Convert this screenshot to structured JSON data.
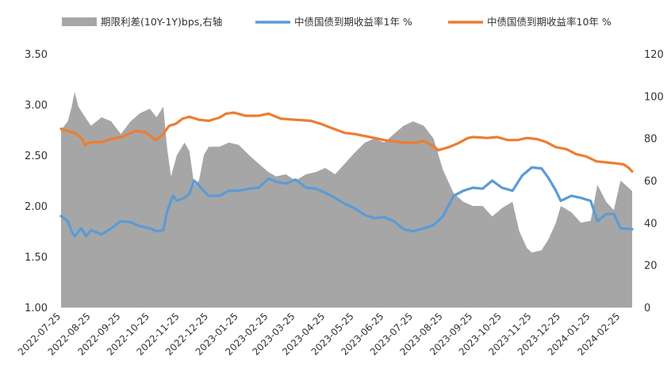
{
  "chart_data": {
    "type": "area+line",
    "title": "",
    "legend": {
      "position": "top",
      "entries": [
        {
          "key": "spread",
          "label": "期限利差(10Y-1Y)bps,右轴",
          "kind": "area",
          "color": "#a6a6a6"
        },
        {
          "key": "y1",
          "label": "中债国债到期收益率1年 %",
          "kind": "line",
          "color": "#5b9bd5"
        },
        {
          "key": "y10",
          "label": "中债国债到期收益率10年 %",
          "kind": "line",
          "color": "#ed7d31"
        }
      ]
    },
    "left_axis": {
      "min": 1.0,
      "max": 3.5,
      "ticks": [
        "1.00",
        "1.50",
        "2.00",
        "2.50",
        "3.00",
        "3.50"
      ]
    },
    "right_axis": {
      "min": 0,
      "max": 120,
      "ticks": [
        "0",
        "20",
        "40",
        "60",
        "80",
        "100",
        "120"
      ]
    },
    "x_axis": {
      "start": "2022-07-25",
      "end": "2024-03-08",
      "tick_labels": [
        "2022-07-25",
        "2022-08-25",
        "2022-09-25",
        "2022-10-25",
        "2022-11-25",
        "2022-12-25",
        "2023-01-25",
        "2023-02-25",
        "2023-03-25",
        "2023-04-25",
        "2023-05-25",
        "2023-06-25",
        "2023-07-25",
        "2023-08-25",
        "2023-09-25",
        "2023-10-25",
        "2023-11-25",
        "2023-12-25",
        "2024-01-25",
        "2024-02-25"
      ]
    },
    "series": [
      {
        "name": "中债国债到期收益率10年 %",
        "key": "y10",
        "axis": "left",
        "points": [
          [
            "2022-07-25",
            2.76
          ],
          [
            "2022-08-01",
            2.74
          ],
          [
            "2022-08-08",
            2.72
          ],
          [
            "2022-08-15",
            2.67
          ],
          [
            "2022-08-19",
            2.6
          ],
          [
            "2022-08-25",
            2.63
          ],
          [
            "2022-09-05",
            2.63
          ],
          [
            "2022-09-15",
            2.66
          ],
          [
            "2022-09-26",
            2.68
          ],
          [
            "2022-10-10",
            2.74
          ],
          [
            "2022-10-20",
            2.73
          ],
          [
            "2022-10-31",
            2.65
          ],
          [
            "2022-11-07",
            2.7
          ],
          [
            "2022-11-14",
            2.79
          ],
          [
            "2022-11-21",
            2.81
          ],
          [
            "2022-11-28",
            2.86
          ],
          [
            "2022-12-05",
            2.88
          ],
          [
            "2022-12-15",
            2.85
          ],
          [
            "2022-12-25",
            2.84
          ],
          [
            "2023-01-05",
            2.87
          ],
          [
            "2023-01-12",
            2.91
          ],
          [
            "2023-01-20",
            2.92
          ],
          [
            "2023-02-01",
            2.89
          ],
          [
            "2023-02-15",
            2.89
          ],
          [
            "2023-02-25",
            2.91
          ],
          [
            "2023-03-10",
            2.86
          ],
          [
            "2023-03-25",
            2.85
          ],
          [
            "2023-04-10",
            2.84
          ],
          [
            "2023-04-20",
            2.81
          ],
          [
            "2023-05-01",
            2.77
          ],
          [
            "2023-05-15",
            2.72
          ],
          [
            "2023-05-25",
            2.71
          ],
          [
            "2023-06-10",
            2.68
          ],
          [
            "2023-06-25",
            2.65
          ],
          [
            "2023-07-10",
            2.63
          ],
          [
            "2023-07-25",
            2.62
          ],
          [
            "2023-08-05",
            2.64
          ],
          [
            "2023-08-15",
            2.59
          ],
          [
            "2023-08-20",
            2.55
          ],
          [
            "2023-08-31",
            2.58
          ],
          [
            "2023-09-10",
            2.62
          ],
          [
            "2023-09-20",
            2.67
          ],
          [
            "2023-09-25",
            2.68
          ],
          [
            "2023-10-10",
            2.67
          ],
          [
            "2023-10-20",
            2.68
          ],
          [
            "2023-10-31",
            2.65
          ],
          [
            "2023-11-10",
            2.65
          ],
          [
            "2023-11-20",
            2.67
          ],
          [
            "2023-11-30",
            2.66
          ],
          [
            "2023-12-10",
            2.63
          ],
          [
            "2023-12-20",
            2.58
          ],
          [
            "2023-12-31",
            2.56
          ],
          [
            "2024-01-10",
            2.51
          ],
          [
            "2024-01-20",
            2.49
          ],
          [
            "2024-01-31",
            2.44
          ],
          [
            "2024-02-10",
            2.43
          ],
          [
            "2024-02-20",
            2.42
          ],
          [
            "2024-02-28",
            2.41
          ],
          [
            "2024-03-04",
            2.38
          ],
          [
            "2024-03-08",
            2.34
          ]
        ]
      },
      {
        "name": "中债国债到期收益率1年 %",
        "key": "y1",
        "axis": "left",
        "points": [
          [
            "2022-07-25",
            1.9
          ],
          [
            "2022-08-01",
            1.85
          ],
          [
            "2022-08-05",
            1.75
          ],
          [
            "2022-08-08",
            1.7
          ],
          [
            "2022-08-15",
            1.78
          ],
          [
            "2022-08-20",
            1.7
          ],
          [
            "2022-08-25",
            1.76
          ],
          [
            "2022-09-05",
            1.72
          ],
          [
            "2022-09-15",
            1.78
          ],
          [
            "2022-09-25",
            1.85
          ],
          [
            "2022-10-05",
            1.84
          ],
          [
            "2022-10-15",
            1.8
          ],
          [
            "2022-10-25",
            1.78
          ],
          [
            "2022-11-01",
            1.75
          ],
          [
            "2022-11-08",
            1.76
          ],
          [
            "2022-11-12",
            1.95
          ],
          [
            "2022-11-18",
            2.1
          ],
          [
            "2022-11-22",
            2.05
          ],
          [
            "2022-11-30",
            2.08
          ],
          [
            "2022-12-05",
            2.12
          ],
          [
            "2022-12-10",
            2.25
          ],
          [
            "2022-12-15",
            2.2
          ],
          [
            "2022-12-20",
            2.15
          ],
          [
            "2022-12-25",
            2.1
          ],
          [
            "2023-01-05",
            2.1
          ],
          [
            "2023-01-15",
            2.15
          ],
          [
            "2023-01-25",
            2.15
          ],
          [
            "2023-02-05",
            2.17
          ],
          [
            "2023-02-15",
            2.18
          ],
          [
            "2023-02-25",
            2.27
          ],
          [
            "2023-03-05",
            2.24
          ],
          [
            "2023-03-15",
            2.22
          ],
          [
            "2023-03-25",
            2.26
          ],
          [
            "2023-04-05",
            2.18
          ],
          [
            "2023-04-15",
            2.17
          ],
          [
            "2023-04-25",
            2.13
          ],
          [
            "2023-05-05",
            2.08
          ],
          [
            "2023-05-15",
            2.02
          ],
          [
            "2023-05-25",
            1.98
          ],
          [
            "2023-06-05",
            1.91
          ],
          [
            "2023-06-15",
            1.88
          ],
          [
            "2023-06-25",
            1.89
          ],
          [
            "2023-07-05",
            1.85
          ],
          [
            "2023-07-15",
            1.77
          ],
          [
            "2023-07-25",
            1.75
          ],
          [
            "2023-08-05",
            1.78
          ],
          [
            "2023-08-15",
            1.81
          ],
          [
            "2023-08-25",
            1.9
          ],
          [
            "2023-09-05",
            2.1
          ],
          [
            "2023-09-15",
            2.15
          ],
          [
            "2023-09-25",
            2.18
          ],
          [
            "2023-10-05",
            2.17
          ],
          [
            "2023-10-15",
            2.25
          ],
          [
            "2023-10-25",
            2.18
          ],
          [
            "2023-11-05",
            2.15
          ],
          [
            "2023-11-15",
            2.3
          ],
          [
            "2023-11-25",
            2.38
          ],
          [
            "2023-12-05",
            2.37
          ],
          [
            "2023-12-12",
            2.28
          ],
          [
            "2023-12-20",
            2.15
          ],
          [
            "2023-12-25",
            2.05
          ],
          [
            "2024-01-05",
            2.1
          ],
          [
            "2024-01-15",
            2.08
          ],
          [
            "2024-01-25",
            2.05
          ],
          [
            "2024-02-01",
            1.85
          ],
          [
            "2024-02-10",
            1.92
          ],
          [
            "2024-02-18",
            1.92
          ],
          [
            "2024-02-25",
            1.78
          ],
          [
            "2024-03-08",
            1.77
          ]
        ]
      },
      {
        "name": "期限利差(10Y-1Y)bps,右轴",
        "key": "spread",
        "axis": "right",
        "points": [
          [
            "2022-07-25",
            84
          ],
          [
            "2022-08-01",
            88
          ],
          [
            "2022-08-05",
            95
          ],
          [
            "2022-08-08",
            102
          ],
          [
            "2022-08-12",
            95
          ],
          [
            "2022-08-19",
            90
          ],
          [
            "2022-08-25",
            86
          ],
          [
            "2022-09-05",
            90
          ],
          [
            "2022-09-15",
            88
          ],
          [
            "2022-09-25",
            82
          ],
          [
            "2022-10-05",
            88
          ],
          [
            "2022-10-15",
            92
          ],
          [
            "2022-10-25",
            94
          ],
          [
            "2022-11-01",
            90
          ],
          [
            "2022-11-08",
            95
          ],
          [
            "2022-11-12",
            75
          ],
          [
            "2022-11-16",
            62
          ],
          [
            "2022-11-22",
            72
          ],
          [
            "2022-11-30",
            78
          ],
          [
            "2022-12-05",
            74
          ],
          [
            "2022-12-10",
            58
          ],
          [
            "2022-12-15",
            60
          ],
          [
            "2022-12-20",
            72
          ],
          [
            "2022-12-25",
            76
          ],
          [
            "2023-01-05",
            76
          ],
          [
            "2023-01-15",
            78
          ],
          [
            "2023-01-25",
            77
          ],
          [
            "2023-02-05",
            72
          ],
          [
            "2023-02-15",
            68
          ],
          [
            "2023-02-25",
            64
          ],
          [
            "2023-03-05",
            62
          ],
          [
            "2023-03-15",
            63
          ],
          [
            "2023-03-25",
            60
          ],
          [
            "2023-04-05",
            63
          ],
          [
            "2023-04-15",
            64
          ],
          [
            "2023-04-25",
            66
          ],
          [
            "2023-05-05",
            63
          ],
          [
            "2023-05-15",
            68
          ],
          [
            "2023-05-25",
            73
          ],
          [
            "2023-06-05",
            78
          ],
          [
            "2023-06-15",
            80
          ],
          [
            "2023-06-25",
            78
          ],
          [
            "2023-07-05",
            82
          ],
          [
            "2023-07-15",
            86
          ],
          [
            "2023-07-25",
            88
          ],
          [
            "2023-08-05",
            86
          ],
          [
            "2023-08-15",
            80
          ],
          [
            "2023-08-25",
            65
          ],
          [
            "2023-09-05",
            54
          ],
          [
            "2023-09-15",
            50
          ],
          [
            "2023-09-25",
            48
          ],
          [
            "2023-10-05",
            48
          ],
          [
            "2023-10-15",
            43
          ],
          [
            "2023-10-25",
            47
          ],
          [
            "2023-11-05",
            50
          ],
          [
            "2023-11-12",
            36
          ],
          [
            "2023-11-20",
            28
          ],
          [
            "2023-11-25",
            26
          ],
          [
            "2023-12-05",
            27
          ],
          [
            "2023-12-12",
            32
          ],
          [
            "2023-12-20",
            40
          ],
          [
            "2023-12-25",
            48
          ],
          [
            "2024-01-05",
            45
          ],
          [
            "2024-01-15",
            40
          ],
          [
            "2024-01-25",
            41
          ],
          [
            "2024-02-01",
            58
          ],
          [
            "2024-02-10",
            50
          ],
          [
            "2024-02-18",
            46
          ],
          [
            "2024-02-25",
            60
          ],
          [
            "2024-03-08",
            55
          ]
        ]
      }
    ]
  }
}
